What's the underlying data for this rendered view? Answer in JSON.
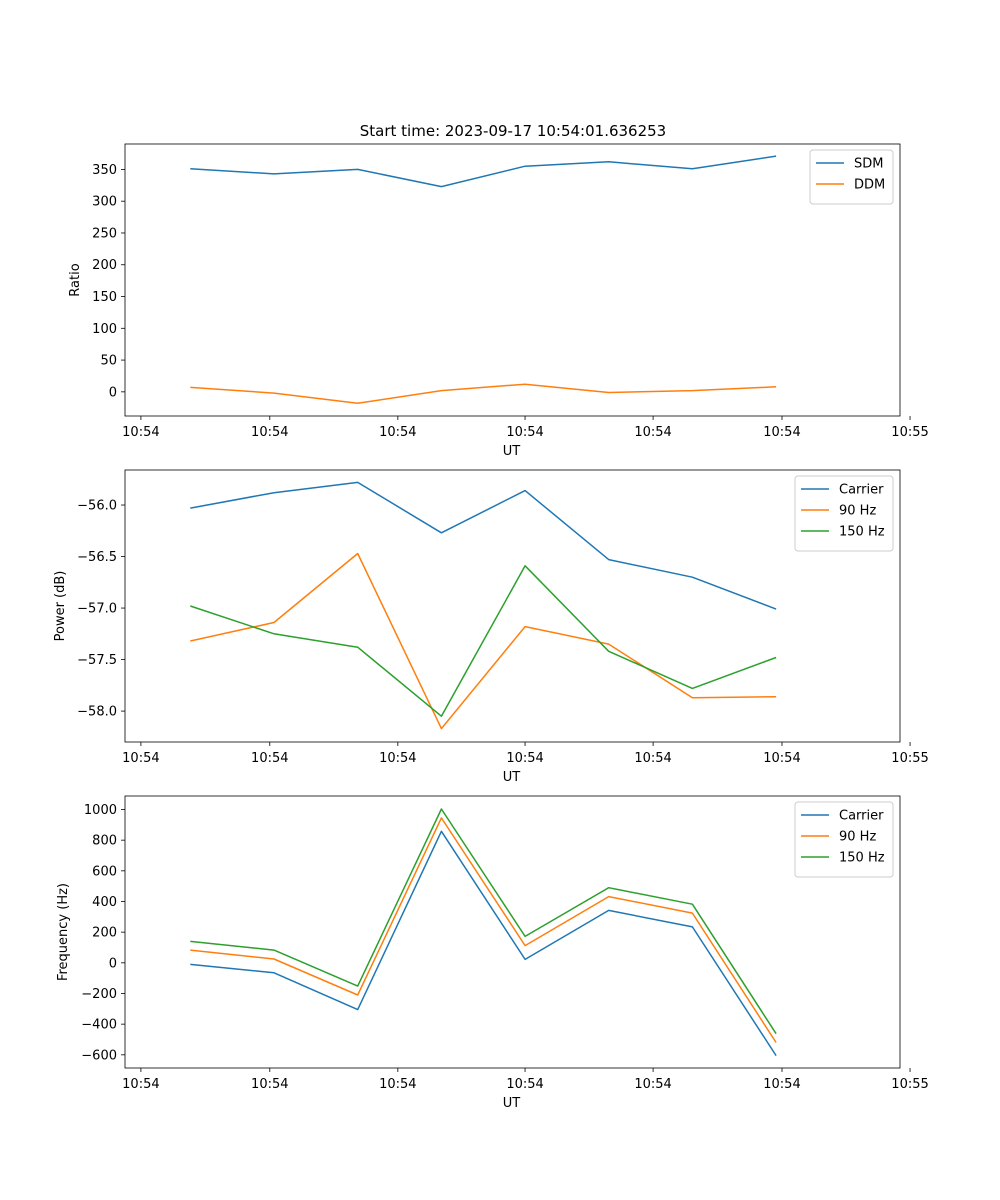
{
  "title": "Start time: 2023-09-17 10:54:01.636253",
  "colors": {
    "blue": "#1f77b4",
    "orange": "#ff7f0e",
    "green": "#2ca02c"
  },
  "chart_data": [
    {
      "type": "line",
      "title": "Start time: 2023-09-17 10:54:01.636253",
      "xlabel": "UT",
      "ylabel": "Ratio",
      "x": [
        1,
        2,
        3,
        4,
        5,
        6,
        7,
        8
      ],
      "xlim": [
        0.22,
        9.48
      ],
      "ylim": [
        -38,
        390
      ],
      "xticks": [
        0.41,
        1.95,
        3.48,
        5.0,
        6.53,
        8.07,
        9.6
      ],
      "xtick_labels": [
        "10:54",
        "10:54",
        "10:54",
        "10:54",
        "10:54",
        "10:54",
        "10:55"
      ],
      "yticks": [
        0,
        50,
        100,
        150,
        200,
        250,
        300,
        350
      ],
      "ytick_labels": [
        "0",
        "50",
        "100",
        "150",
        "200",
        "250",
        "300",
        "350"
      ],
      "legend": "top-right",
      "series": [
        {
          "name": "SDM",
          "color": "#1f77b4",
          "values": [
            351,
            343,
            350,
            323,
            355,
            362,
            351,
            371
          ]
        },
        {
          "name": "DDM",
          "color": "#ff7f0e",
          "values": [
            7,
            -2,
            -18,
            2,
            12,
            -1,
            2,
            8
          ]
        }
      ]
    },
    {
      "type": "line",
      "title": "",
      "xlabel": "UT",
      "ylabel": "Power (dB)",
      "x": [
        1,
        2,
        3,
        4,
        5,
        6,
        7,
        8
      ],
      "xlim": [
        0.22,
        9.48
      ],
      "ylim": [
        -58.3,
        -55.66
      ],
      "xticks": [
        0.41,
        1.95,
        3.48,
        5.0,
        6.53,
        8.07,
        9.6
      ],
      "xtick_labels": [
        "10:54",
        "10:54",
        "10:54",
        "10:54",
        "10:54",
        "10:54",
        "10:55"
      ],
      "yticks": [
        -58.0,
        -57.5,
        -57.0,
        -56.5,
        -56.0
      ],
      "ytick_labels": [
        "−58.0",
        "−57.5",
        "−57.0",
        "−56.5",
        "−56.0"
      ],
      "legend": "top-right",
      "series": [
        {
          "name": "Carrier",
          "color": "#1f77b4",
          "values": [
            -56.03,
            -55.88,
            -55.78,
            -56.27,
            -55.86,
            -56.53,
            -56.7,
            -57.01
          ]
        },
        {
          "name": "90 Hz",
          "color": "#ff7f0e",
          "values": [
            -57.32,
            -57.14,
            -56.47,
            -58.17,
            -57.18,
            -57.35,
            -57.87,
            -57.86
          ]
        },
        {
          "name": "150 Hz",
          "color": "#2ca02c",
          "values": [
            -56.98,
            -57.25,
            -57.38,
            -58.05,
            -56.59,
            -57.42,
            -57.78,
            -57.48
          ]
        }
      ]
    },
    {
      "type": "line",
      "title": "",
      "xlabel": "UT",
      "ylabel": "Frequency (Hz)",
      "x": [
        1,
        2,
        3,
        4,
        5,
        6,
        7,
        8
      ],
      "xlim": [
        0.22,
        9.48
      ],
      "ylim": [
        -686,
        1088
      ],
      "xticks": [
        0.41,
        1.95,
        3.48,
        5.0,
        6.53,
        8.07,
        9.6
      ],
      "xtick_labels": [
        "10:54",
        "10:54",
        "10:54",
        "10:54",
        "10:54",
        "10:54",
        "10:55"
      ],
      "yticks": [
        -600,
        -400,
        -200,
        0,
        200,
        400,
        600,
        800,
        1000
      ],
      "ytick_labels": [
        "−600",
        "−400",
        "−200",
        "0",
        "200",
        "400",
        "600",
        "800",
        "1000"
      ],
      "legend": "top-right",
      "series": [
        {
          "name": "Carrier",
          "color": "#1f77b4",
          "values": [
            -10,
            -65,
            -305,
            858,
            22,
            342,
            234,
            -605
          ]
        },
        {
          "name": "90 Hz",
          "color": "#ff7f0e",
          "values": [
            83,
            25,
            -210,
            945,
            112,
            432,
            324,
            -520
          ]
        },
        {
          "name": "150 Hz",
          "color": "#2ca02c",
          "values": [
            140,
            83,
            -152,
            1003,
            172,
            490,
            382,
            -462
          ]
        }
      ]
    }
  ]
}
